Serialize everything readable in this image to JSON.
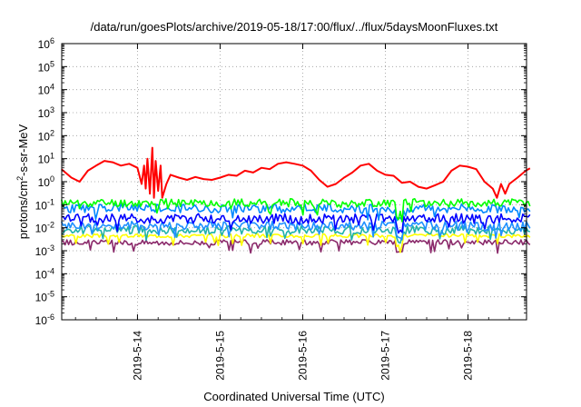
{
  "chart_data": {
    "type": "line",
    "title": "/data/run/goesPlots/archive/2019-05-18/17:00/flux/../flux/5daysMoonFluxes.txt",
    "xlabel": "Coordinated Universal Time (UTC)",
    "ylabel": "protons/cm2-s-sr-MeV",
    "ylabel_parts": {
      "pre": "protons/cm",
      "sup": "2",
      "post": "-s-sr-MeV"
    },
    "yscale": "log",
    "ylim_exponents": [
      -6,
      6
    ],
    "y_tick_exponents": [
      "-6",
      "-5",
      "-4",
      "-3",
      "-2",
      "-1",
      "0",
      "1",
      "2",
      "3",
      "4",
      "5",
      "6"
    ],
    "y_tick_base": "10",
    "x_range_days": [
      "2019-05-13T02:00",
      "2019-05-18T17:00"
    ],
    "x_tick_labels": [
      "2019-5-14",
      "2019-5-15",
      "2019-5-16",
      "2019-5-17",
      "2019-5-18"
    ],
    "grid": true,
    "legend": "none",
    "series": [
      {
        "color": "#ff0000",
        "x_days": [
          13.08,
          13.2,
          13.3,
          13.4,
          13.5,
          13.6,
          13.7,
          13.8,
          13.9,
          14.0,
          14.05,
          14.08,
          14.1,
          14.12,
          14.15,
          14.18,
          14.2,
          14.22,
          14.25,
          14.28,
          14.3,
          14.35,
          14.4,
          14.5,
          14.6,
          14.7,
          14.8,
          14.9,
          15.0,
          15.1,
          15.2,
          15.3,
          15.4,
          15.5,
          15.6,
          15.7,
          15.8,
          15.9,
          16.0,
          16.1,
          16.2,
          16.3,
          16.4,
          16.5,
          16.6,
          16.7,
          16.8,
          16.9,
          17.0,
          17.1,
          17.2,
          17.3,
          17.4,
          17.5,
          17.6,
          17.7,
          17.8,
          17.9,
          18.0,
          18.1,
          18.2,
          18.3,
          18.35,
          18.4,
          18.45,
          18.5,
          18.6,
          18.7,
          18.75
        ],
        "values": [
          3.5,
          1.5,
          1.0,
          3.0,
          5.0,
          8.0,
          7.0,
          5.0,
          6.0,
          4.0,
          0.8,
          5.0,
          0.5,
          10.0,
          0.3,
          30.0,
          0.2,
          8.0,
          0.4,
          5.0,
          0.2,
          0.8,
          2.0,
          1.5,
          1.2,
          1.6,
          1.3,
          1.2,
          1.5,
          2.0,
          1.8,
          3.0,
          2.5,
          4.0,
          3.5,
          6.0,
          7.0,
          6.0,
          5.0,
          3.0,
          1.2,
          0.6,
          0.8,
          1.5,
          2.5,
          5.0,
          6.0,
          3.0,
          2.0,
          1.8,
          0.9,
          1.0,
          0.6,
          0.5,
          0.7,
          1.0,
          3.0,
          5.0,
          4.5,
          3.5,
          1.0,
          0.5,
          0.2,
          0.8,
          0.3,
          0.8,
          1.5,
          3.0,
          3.8
        ]
      },
      {
        "color": "#00ff00",
        "level": 0.12,
        "spread": 0.18,
        "seed": 11
      },
      {
        "color": "#0088ff",
        "level": 0.07,
        "spread": 0.2,
        "seed": 23
      },
      {
        "color": "#0000ff",
        "level": 0.025,
        "spread": 0.22,
        "seed": 37
      },
      {
        "color": "#1e90ff",
        "level": 0.012,
        "spread": 0.2,
        "seed": 41
      },
      {
        "color": "#20b2aa",
        "level": 0.008,
        "spread": 0.18,
        "seed": 53
      },
      {
        "color": "#ffff00",
        "level": 0.0045,
        "spread": 0.08,
        "seed": 67
      },
      {
        "color": "#8b2a6b",
        "level": 0.0023,
        "spread": 0.12,
        "seed": 79
      }
    ]
  }
}
